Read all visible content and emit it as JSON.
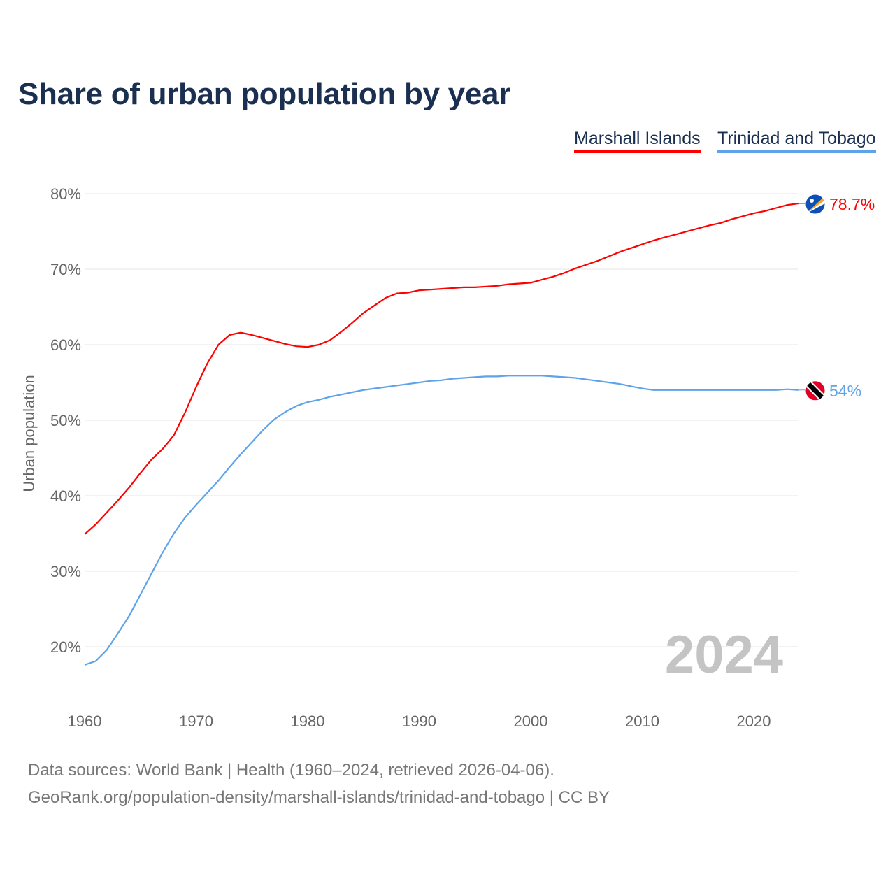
{
  "chart_data": {
    "type": "line",
    "title": "Share of urban population by year",
    "xlabel": "",
    "ylabel": "Urban population",
    "xlim": [
      1960,
      2024
    ],
    "ylim": [
      13,
      84
    ],
    "yticks": [
      20,
      30,
      40,
      50,
      60,
      70,
      80
    ],
    "ytick_labels": [
      "20%",
      "30%",
      "40%",
      "50%",
      "60%",
      "70%",
      "80%"
    ],
    "xticks": [
      1960,
      1970,
      1980,
      1990,
      2000,
      2010,
      2020
    ],
    "xtick_labels": [
      "1960",
      "1970",
      "1980",
      "1990",
      "2000",
      "2010",
      "2020"
    ],
    "grid": true,
    "legend_position": "top-right",
    "current_year": "2024",
    "x": [
      1960,
      1961,
      1962,
      1963,
      1964,
      1965,
      1966,
      1967,
      1968,
      1969,
      1970,
      1971,
      1972,
      1973,
      1974,
      1975,
      1976,
      1977,
      1978,
      1979,
      1980,
      1981,
      1982,
      1983,
      1984,
      1985,
      1986,
      1987,
      1988,
      1989,
      1990,
      1991,
      1992,
      1993,
      1994,
      1995,
      1996,
      1997,
      1998,
      1999,
      2000,
      2001,
      2002,
      2003,
      2004,
      2005,
      2006,
      2007,
      2008,
      2009,
      2010,
      2011,
      2012,
      2013,
      2014,
      2015,
      2016,
      2017,
      2018,
      2019,
      2020,
      2021,
      2022,
      2023,
      2024
    ],
    "series": [
      {
        "name": "Marshall Islands",
        "color": "#ff0000",
        "end_label": "78.7%",
        "flag": "marshall-islands-flag",
        "values": [
          34.9,
          36.2,
          37.8,
          39.4,
          41.1,
          43.0,
          44.8,
          46.2,
          48.0,
          51.0,
          54.4,
          57.5,
          60.0,
          61.3,
          61.6,
          61.3,
          60.9,
          60.5,
          60.1,
          59.8,
          59.7,
          60.0,
          60.6,
          61.7,
          62.9,
          64.2,
          65.2,
          66.2,
          66.8,
          66.9,
          67.2,
          67.3,
          67.4,
          67.5,
          67.6,
          67.6,
          67.7,
          67.8,
          68.0,
          68.1,
          68.2,
          68.6,
          69.0,
          69.5,
          70.1,
          70.6,
          71.1,
          71.7,
          72.3,
          72.8,
          73.3,
          73.8,
          74.2,
          74.6,
          75.0,
          75.4,
          75.8,
          76.1,
          76.6,
          77.0,
          77.4,
          77.7,
          78.1,
          78.5,
          78.7
        ]
      },
      {
        "name": "Trinidad and Tobago",
        "color": "#5ea3ea",
        "end_label": "54%",
        "flag": "trinidad-and-tobago-flag",
        "values": [
          17.6,
          18.1,
          19.6,
          21.8,
          24.1,
          26.9,
          29.7,
          32.5,
          35.0,
          37.1,
          38.8,
          40.4,
          42.0,
          43.8,
          45.5,
          47.1,
          48.7,
          50.1,
          51.1,
          51.9,
          52.4,
          52.7,
          53.1,
          53.4,
          53.7,
          54.0,
          54.2,
          54.4,
          54.6,
          54.8,
          55.0,
          55.2,
          55.3,
          55.5,
          55.6,
          55.7,
          55.8,
          55.8,
          55.9,
          55.9,
          55.9,
          55.9,
          55.8,
          55.7,
          55.6,
          55.4,
          55.2,
          55.0,
          54.8,
          54.5,
          54.2,
          54.0,
          54.0,
          54.0,
          54.0,
          54.0,
          54.0,
          54.0,
          54.0,
          54.0,
          54.0,
          54.0,
          54.0,
          54.1,
          54.0
        ]
      }
    ]
  },
  "footer": {
    "line1": "Data sources: World Bank | Health (1960–2024, retrieved 2026-04-06).",
    "line2": "GeoRank.org/population-density/marshall-islands/trinidad-and-tobago | CC BY"
  }
}
